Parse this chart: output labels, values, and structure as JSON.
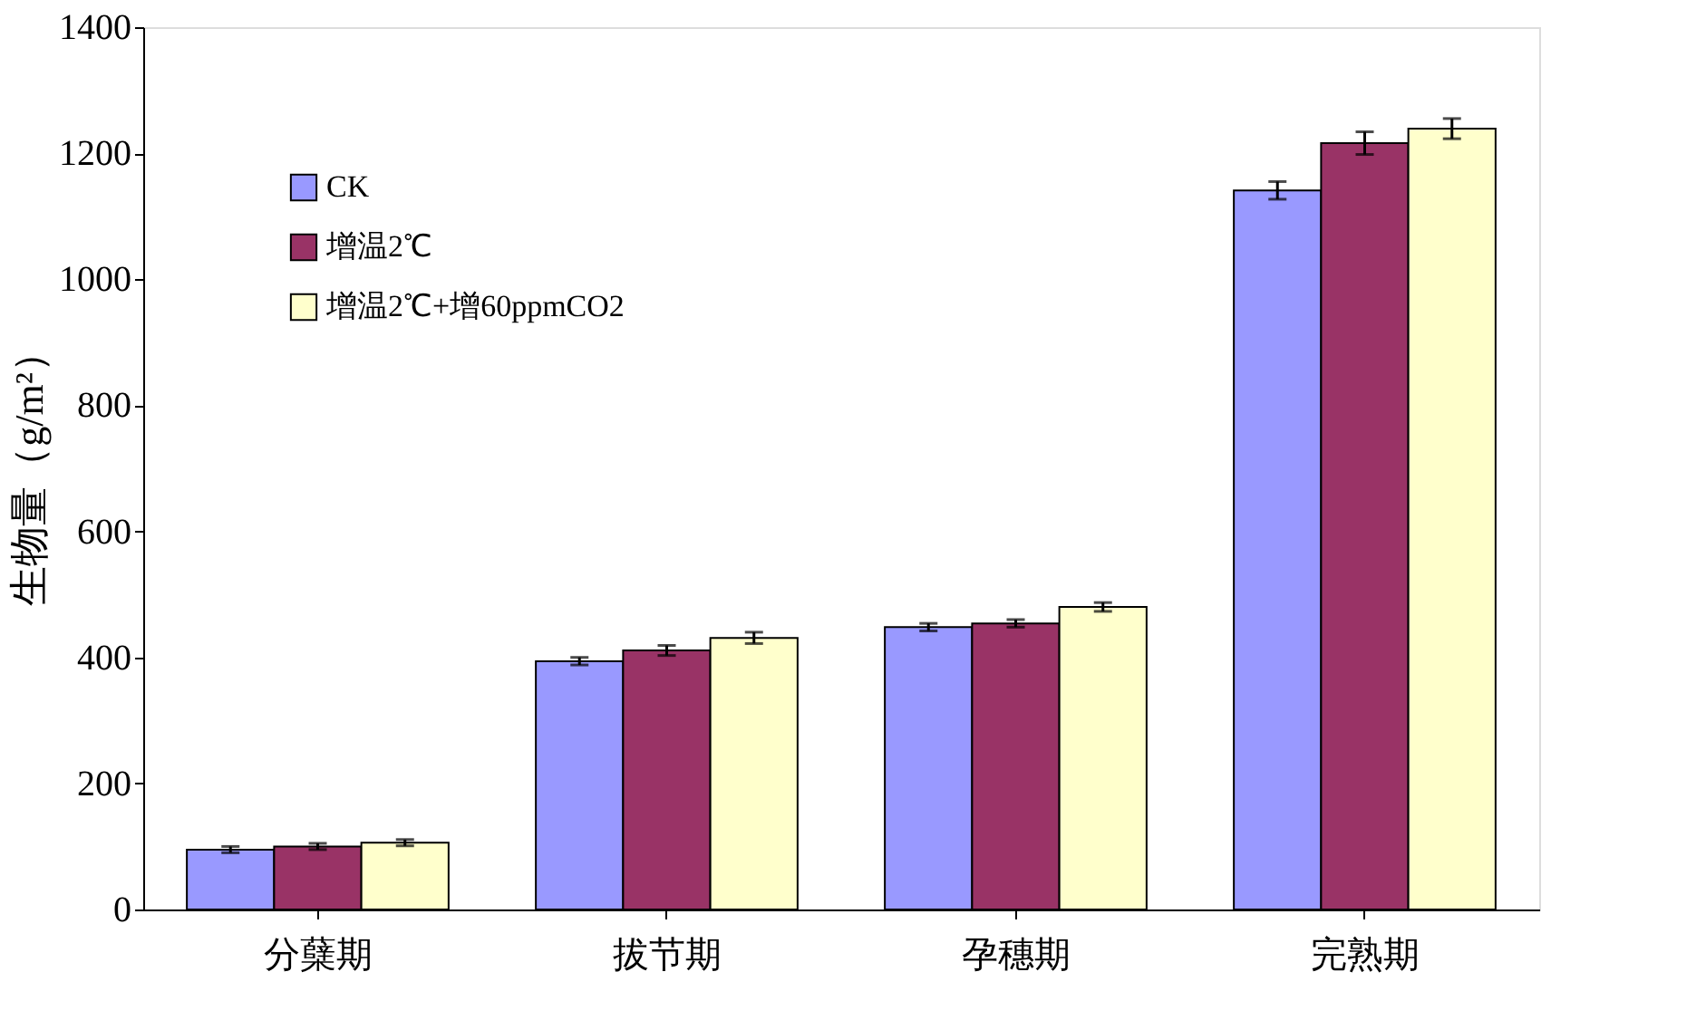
{
  "chart_data": {
    "type": "bar",
    "ylabel": "生物量（g/m²）",
    "categories": [
      "分蘖期",
      "拔节期",
      "孕穗期",
      "完熟期"
    ],
    "series": [
      {
        "name": "CK",
        "color": "#9999ff",
        "values": [
          95,
          394,
          448,
          1141
        ],
        "errors": [
          5,
          6,
          6,
          14
        ]
      },
      {
        "name": "增温2℃",
        "color": "#993366",
        "values": [
          100,
          411,
          454,
          1216
        ],
        "errors": [
          5,
          8,
          6,
          18
        ]
      },
      {
        "name": "增温2℃+增60ppmCO2",
        "color": "#ffffcc",
        "values": [
          106,
          431,
          480,
          1239
        ],
        "errors": [
          5,
          9,
          7,
          16
        ]
      }
    ],
    "ylim": [
      0,
      1400
    ],
    "yticks": [
      0,
      200,
      400,
      600,
      800,
      1000,
      1200,
      1400
    ],
    "grid": false,
    "legend": "top left"
  }
}
